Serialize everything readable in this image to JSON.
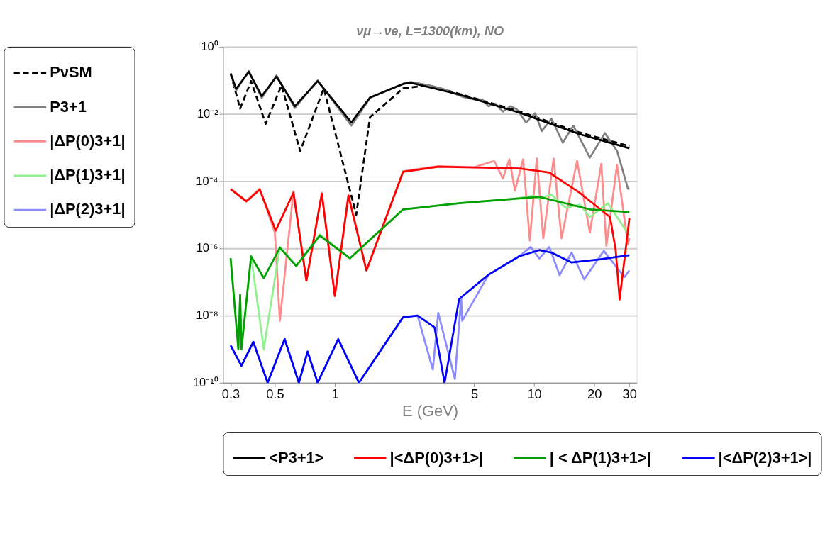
{
  "chart_data": {
    "type": "line",
    "title": "νμ→νe, L=1300(km),  NO",
    "xlabel": "E (GeV)",
    "log": "xy",
    "grid": "y",
    "legend": "left",
    "line_style": "solid",
    "xlim": [
      0.275,
      32.7
    ],
    "ylim": [
      1e-10,
      1
    ],
    "xticks": [
      0.3,
      0.5,
      1,
      5,
      10,
      20,
      30
    ],
    "yticks": [
      {
        "value": 1e-10,
        "label": "10⁻¹⁰"
      },
      {
        "value": 1e-08,
        "label": "10⁻⁸"
      },
      {
        "value": 1e-06,
        "label": "10⁻⁶"
      },
      {
        "value": 0.0001,
        "label": "10⁻⁴"
      },
      {
        "value": 0.01,
        "label": "10⁻²"
      },
      {
        "value": 1,
        "label": "10⁰"
      }
    ],
    "series": [
      {
        "name": "PνSM",
        "color": "#000000",
        "line_style": "dashed",
        "x": [
          0.3,
          0.335,
          0.38,
          0.45,
          0.54,
          0.67,
          0.88,
          1.28,
          1.5,
          2.2,
          2.95,
          4.2,
          8.4,
          16.9,
          30
        ],
        "values": [
          0.16,
          0.0145,
          0.095,
          0.0051,
          0.071,
          0.00078,
          0.058,
          1e-05,
          0.008,
          0.058,
          0.071,
          0.04,
          0.012,
          0.0028,
          0.0011
        ]
      },
      {
        "name": "P3+1",
        "color": "#808080",
        "x": [
          0.3,
          0.32,
          0.37,
          0.43,
          0.51,
          0.63,
          0.82,
          1.21,
          1.5,
          2.2,
          2.4,
          3.0,
          3.5,
          4.0,
          4.4,
          5.0,
          5.5,
          5.9,
          6.4,
          6.96,
          7.6,
          8.2,
          9.1,
          10.1,
          10.9,
          12.2,
          13.9,
          15.7,
          19,
          22.6,
          26,
          29.5,
          30
        ],
        "values": [
          0.16,
          0.05,
          0.19,
          0.03,
          0.14,
          0.015,
          0.1,
          0.0045,
          0.03,
          0.08,
          0.09,
          0.07,
          0.055,
          0.04,
          0.032,
          0.027,
          0.026,
          0.017,
          0.02,
          0.0118,
          0.017,
          0.0135,
          0.0056,
          0.0105,
          0.0031,
          0.0072,
          0.0014,
          0.0045,
          0.0005,
          0.0027,
          0.0008,
          6e-05,
          6e-05
        ]
      },
      {
        "name": "|ΔP(0)3+1|",
        "color": "#ff8c8c",
        "x": [
          0.3,
          0.36,
          0.42,
          0.5,
          0.53,
          0.62,
          0.72,
          0.86,
          1.0,
          1.17,
          1.44,
          2.2,
          3.3,
          5.0,
          6.3,
          6.96,
          7.5,
          8.0,
          8.8,
          9.5,
          10.3,
          11.1,
          12.5,
          13.7,
          16.4,
          19,
          21.7,
          23,
          26,
          29.5,
          30
        ],
        "values": [
          6e-05,
          2.6e-05,
          6e-05,
          3e-06,
          7e-09,
          5e-05,
          1.1e-07,
          4.5e-05,
          4e-08,
          4e-05,
          2.2e-07,
          0.0002,
          0.00028,
          0.00026,
          0.0004,
          0.00012,
          0.00045,
          5.3e-05,
          0.00045,
          1.7e-06,
          0.00047,
          2e-06,
          0.00047,
          2e-06,
          0.0004,
          3e-06,
          0.00033,
          1.2e-06,
          0.0003,
          1.3e-06,
          2e-06
        ]
      },
      {
        "name": "|ΔP(1)3+1|",
        "color": "#90f090",
        "x": [
          0.3,
          0.328,
          0.335,
          0.34,
          0.38,
          0.44,
          0.53,
          0.64,
          0.84,
          1.19,
          2.2,
          4.2,
          8.0,
          9.9,
          10.6,
          12.2,
          14.4,
          16.9,
          19,
          23.4,
          30
        ],
        "values": [
          5e-07,
          1e-09,
          4e-08,
          1e-09,
          6e-07,
          1e-09,
          1.1e-06,
          3e-07,
          2.6e-06,
          5e-07,
          1.45e-05,
          2.2e-05,
          3e-05,
          3.7e-05,
          3e-05,
          4e-05,
          1.6e-05,
          2e-05,
          8.6e-06,
          2.2e-05,
          2.4e-06
        ]
      },
      {
        "name": "|ΔP(2)3+1|",
        "color": "#8c8cff",
        "x": [
          0.3,
          0.34,
          0.39,
          0.46,
          0.56,
          0.66,
          0.73,
          0.82,
          1.04,
          1.32,
          2.2,
          2.6,
          3.1,
          3.3,
          4.0,
          4.3,
          4.35,
          5.9,
          8.4,
          9.6,
          10.6,
          11.9,
          13.4,
          15.4,
          17.8,
          22.3,
          28.3,
          30
        ],
        "values": [
          1.3e-09,
          3.2e-10,
          1.65e-09,
          1e-10,
          2e-09,
          1e-10,
          8.5e-10,
          1e-10,
          2e-09,
          1e-10,
          9e-09,
          1e-08,
          2.5e-10,
          1.2e-08,
          1.3e-10,
          3.5e-08,
          7e-09,
          1.65e-07,
          5.8e-07,
          1.1e-06,
          5e-07,
          1.1e-06,
          1.6e-07,
          7.5e-07,
          1.2e-07,
          8.5e-07,
          1.4e-07,
          2.2e-07
        ]
      },
      {
        "name": "<P3+1>",
        "color": "#000000",
        "x": [
          0.3,
          0.32,
          0.37,
          0.43,
          0.51,
          0.63,
          0.82,
          1.21,
          1.5,
          2.2,
          2.4,
          4.2,
          8.4,
          16.9,
          30
        ],
        "values": [
          0.16,
          0.056,
          0.18,
          0.034,
          0.13,
          0.017,
          0.095,
          0.0056,
          0.031,
          0.078,
          0.085,
          0.038,
          0.011,
          0.0025,
          0.00095
        ]
      },
      {
        "name": "|<ΔP(0)3+1>|",
        "color": "#ff0000",
        "x": [
          0.3,
          0.36,
          0.42,
          0.505,
          0.62,
          0.72,
          0.86,
          1.0,
          1.17,
          1.44,
          2.2,
          3.3,
          8.4,
          11.9,
          16.9,
          24,
          25.6,
          26.8,
          30
        ],
        "values": [
          5.8e-05,
          2.5e-05,
          5.6e-05,
          3.4e-06,
          4.5e-05,
          1.1e-07,
          4.2e-05,
          3.8e-08,
          3.7e-05,
          2.2e-07,
          0.00019,
          0.00027,
          0.00024,
          0.00018,
          4.5e-05,
          8.5e-06,
          9e-07,
          3e-08,
          7.9e-06
        ]
      },
      {
        "name": "| < ΔP(1)3+1>|",
        "color": "#00a000",
        "x": [
          0.3,
          0.328,
          0.335,
          0.34,
          0.38,
          0.44,
          0.53,
          0.64,
          0.84,
          1.19,
          2.2,
          4.2,
          10.6,
          19,
          30
        ],
        "values": [
          5.1e-07,
          1e-09,
          4.2e-08,
          1e-09,
          5.8e-07,
          1.3e-07,
          1.05e-06,
          3e-07,
          2.4e-06,
          5.1e-07,
          1.45e-05,
          2.2e-05,
          3.4e-05,
          1.45e-05,
          1.2e-05
        ]
      },
      {
        "name": "|<ΔP(2)3+1>|",
        "color": "#0000ff",
        "x": [
          0.3,
          0.34,
          0.39,
          0.46,
          0.56,
          0.66,
          0.73,
          0.82,
          1.04,
          1.32,
          2.2,
          2.6,
          3.16,
          3.55,
          4.2,
          5.9,
          8.4,
          10.6,
          12.2,
          15.4,
          21.2,
          30
        ],
        "values": [
          1.3e-09,
          3.2e-10,
          1.65e-09,
          1e-10,
          2e-09,
          1e-10,
          8.5e-10,
          1e-10,
          2e-09,
          1e-10,
          9e-09,
          1e-08,
          4.5e-09,
          1e-10,
          3.1e-08,
          1.65e-07,
          5.8e-07,
          8.9e-07,
          7.5e-07,
          3.8e-07,
          4.7e-07,
          6.3e-07
        ]
      }
    ]
  }
}
